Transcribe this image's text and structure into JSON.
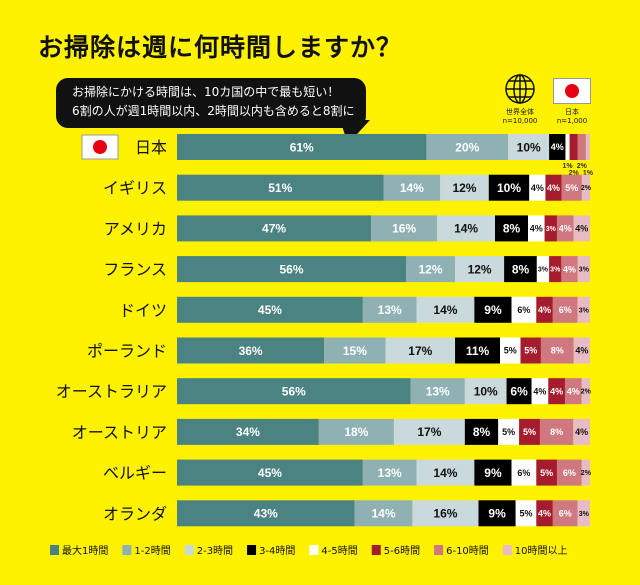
{
  "title": "お掃除は週に何時間しますか？",
  "callout": [
    "お掃除にかける時間は、10カ国の中で最も短い！",
    "6割の人が週1時間以内、2時間以内も含めると8割に"
  ],
  "headers": {
    "world": {
      "icon": "globe-icon",
      "label": "世界全体",
      "n": "n=10,000"
    },
    "japan": {
      "icon": "japan-flag-icon",
      "label": "日本",
      "n": "n=1,000"
    }
  },
  "chart_data": {
    "type": "bar",
    "orientation": "horizontal",
    "stacked": true,
    "categories": [
      "日本",
      "イギリス",
      "アメリカ",
      "フランス",
      "ドイツ",
      "ポーランド",
      "オーストラリア",
      "オーストリア",
      "ベルギー",
      "オランダ"
    ],
    "series": [
      {
        "name": "最大1時間",
        "color": "#4b8282",
        "values": [
          61,
          51,
          47,
          56,
          45,
          36,
          56,
          34,
          45,
          43
        ]
      },
      {
        "name": "1-2時間",
        "color": "#8fb1b4",
        "values": [
          20,
          14,
          16,
          12,
          13,
          15,
          13,
          18,
          13,
          14
        ]
      },
      {
        "name": "2-3時間",
        "color": "#c9d9dc",
        "values": [
          10,
          12,
          14,
          12,
          14,
          17,
          10,
          17,
          14,
          16
        ]
      },
      {
        "name": "3-4時間",
        "color": "#000000",
        "values": [
          4,
          10,
          8,
          8,
          9,
          11,
          6,
          8,
          9,
          9
        ]
      },
      {
        "name": "4-5時間",
        "color": "#ffffff",
        "values": [
          1,
          4,
          4,
          3,
          6,
          5,
          4,
          5,
          6,
          5
        ]
      },
      {
        "name": "5-6時間",
        "color": "#a51c2e",
        "values": [
          2,
          4,
          3,
          3,
          4,
          5,
          4,
          5,
          5,
          4
        ]
      },
      {
        "name": "6-10時間",
        "color": "#d07880",
        "values": [
          2,
          5,
          4,
          4,
          6,
          8,
          4,
          8,
          6,
          6
        ]
      },
      {
        "name": "10時間以上",
        "color": "#e8bcc4",
        "values": [
          1,
          2,
          4,
          3,
          3,
          4,
          2,
          4,
          2,
          3
        ]
      }
    ],
    "legend_position": "bottom",
    "grid": false
  }
}
